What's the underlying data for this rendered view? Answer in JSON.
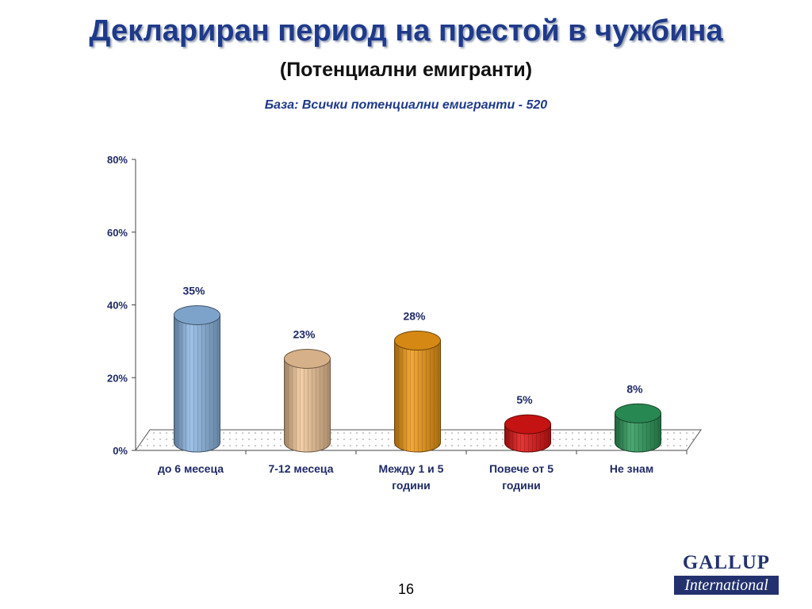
{
  "slide": {
    "title": "Деклариран период на престой в чужбина",
    "subtitle": "(Потенциални емигранти)",
    "base_note": "База: Всички потенциални емигранти - 520",
    "page_number": "16"
  },
  "logo": {
    "line1": "GALLUP",
    "line2": "International"
  },
  "chart_data": {
    "type": "bar",
    "style": "3d-cylinder",
    "categories": [
      [
        "до 6 месеца"
      ],
      [
        "7-12 месеца"
      ],
      [
        "Между 1 и 5",
        "години"
      ],
      [
        "Повече от 5",
        "години"
      ],
      [
        "Не знам"
      ]
    ],
    "values": [
      35,
      23,
      28,
      5,
      8
    ],
    "value_labels": [
      "35%",
      "23%",
      "28%",
      "5%",
      "8%"
    ],
    "colors": [
      "#8fb9e6",
      "#f3c89a",
      "#f29a16",
      "#e01414",
      "#2e9a5c"
    ],
    "y_ticks": [
      "0%",
      "20%",
      "40%",
      "60%",
      "80%"
    ],
    "ylim": [
      0,
      80
    ],
    "grid": false,
    "legend": "none"
  }
}
